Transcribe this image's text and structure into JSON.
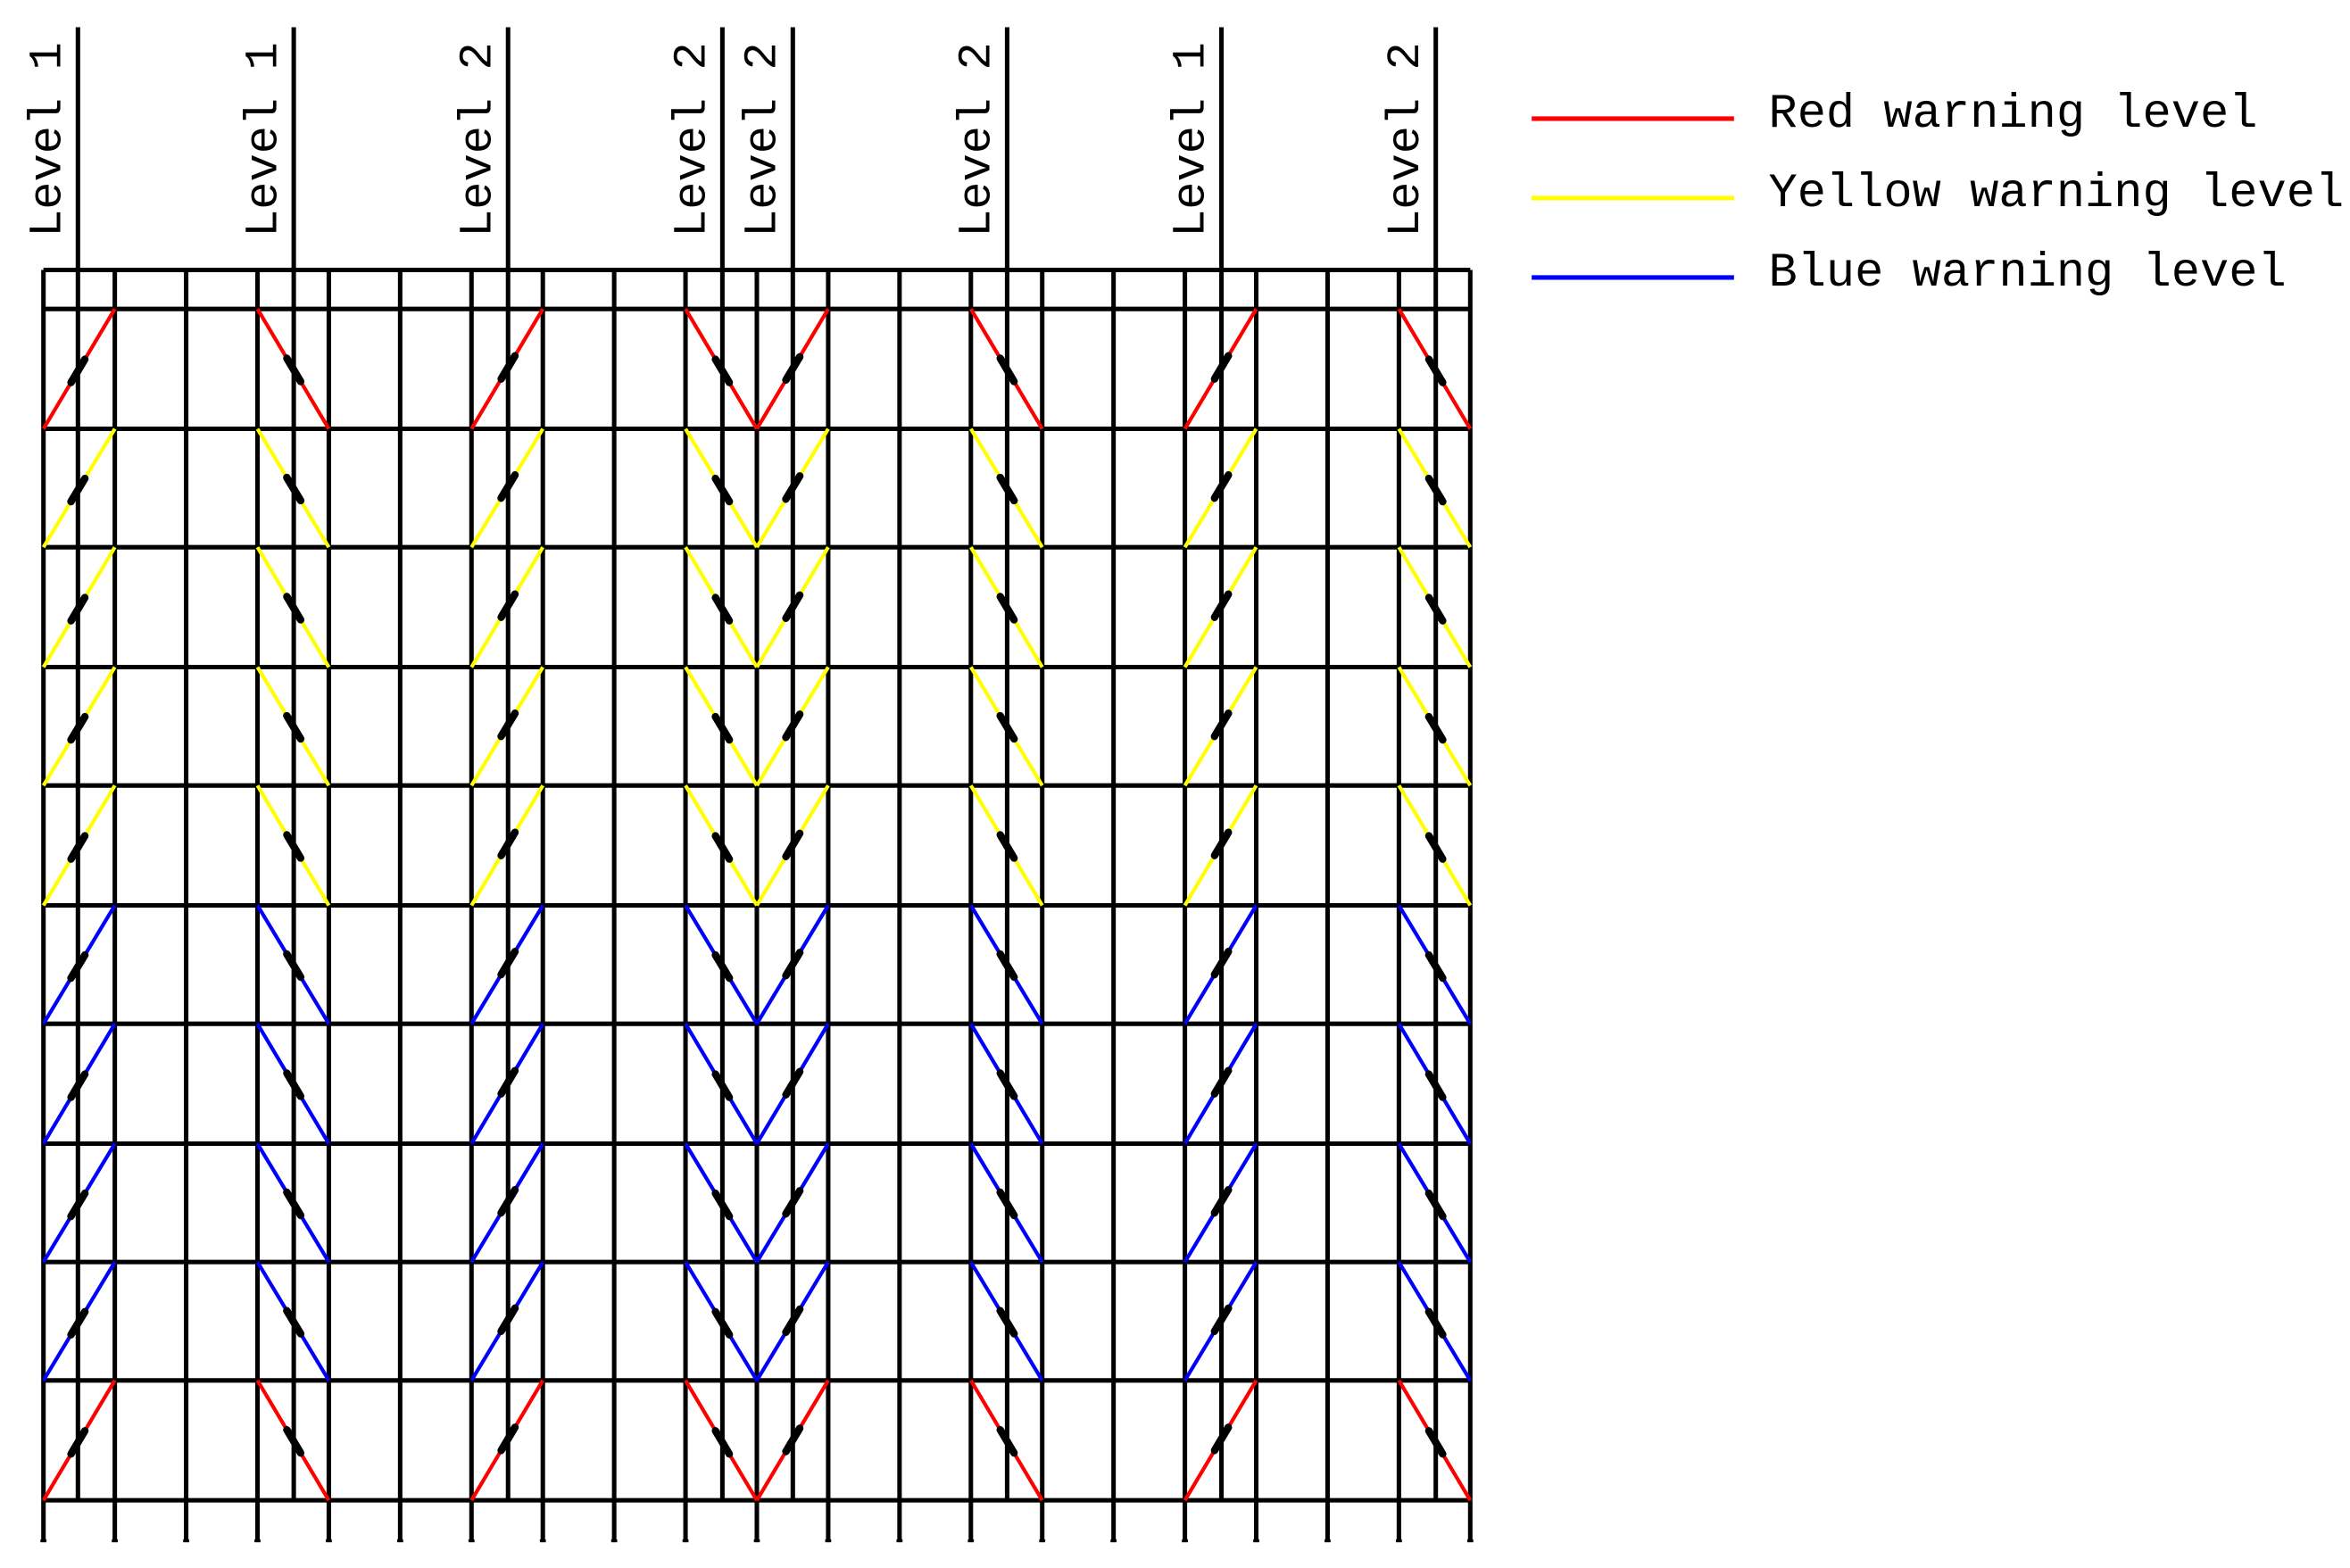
{
  "levels": [
    "Level 1",
    "Level 1",
    "Level 2",
    "Level 2",
    "Level 2",
    "Level 2",
    "Level 1",
    "Level 2"
  ],
  "legend": [
    {
      "label": "Red warning level",
      "color": "#ff0000"
    },
    {
      "label": "Yellow warning level",
      "color": "#ffff00"
    },
    {
      "label": "Blue warning level",
      "color": "#0000ff"
    }
  ]
}
